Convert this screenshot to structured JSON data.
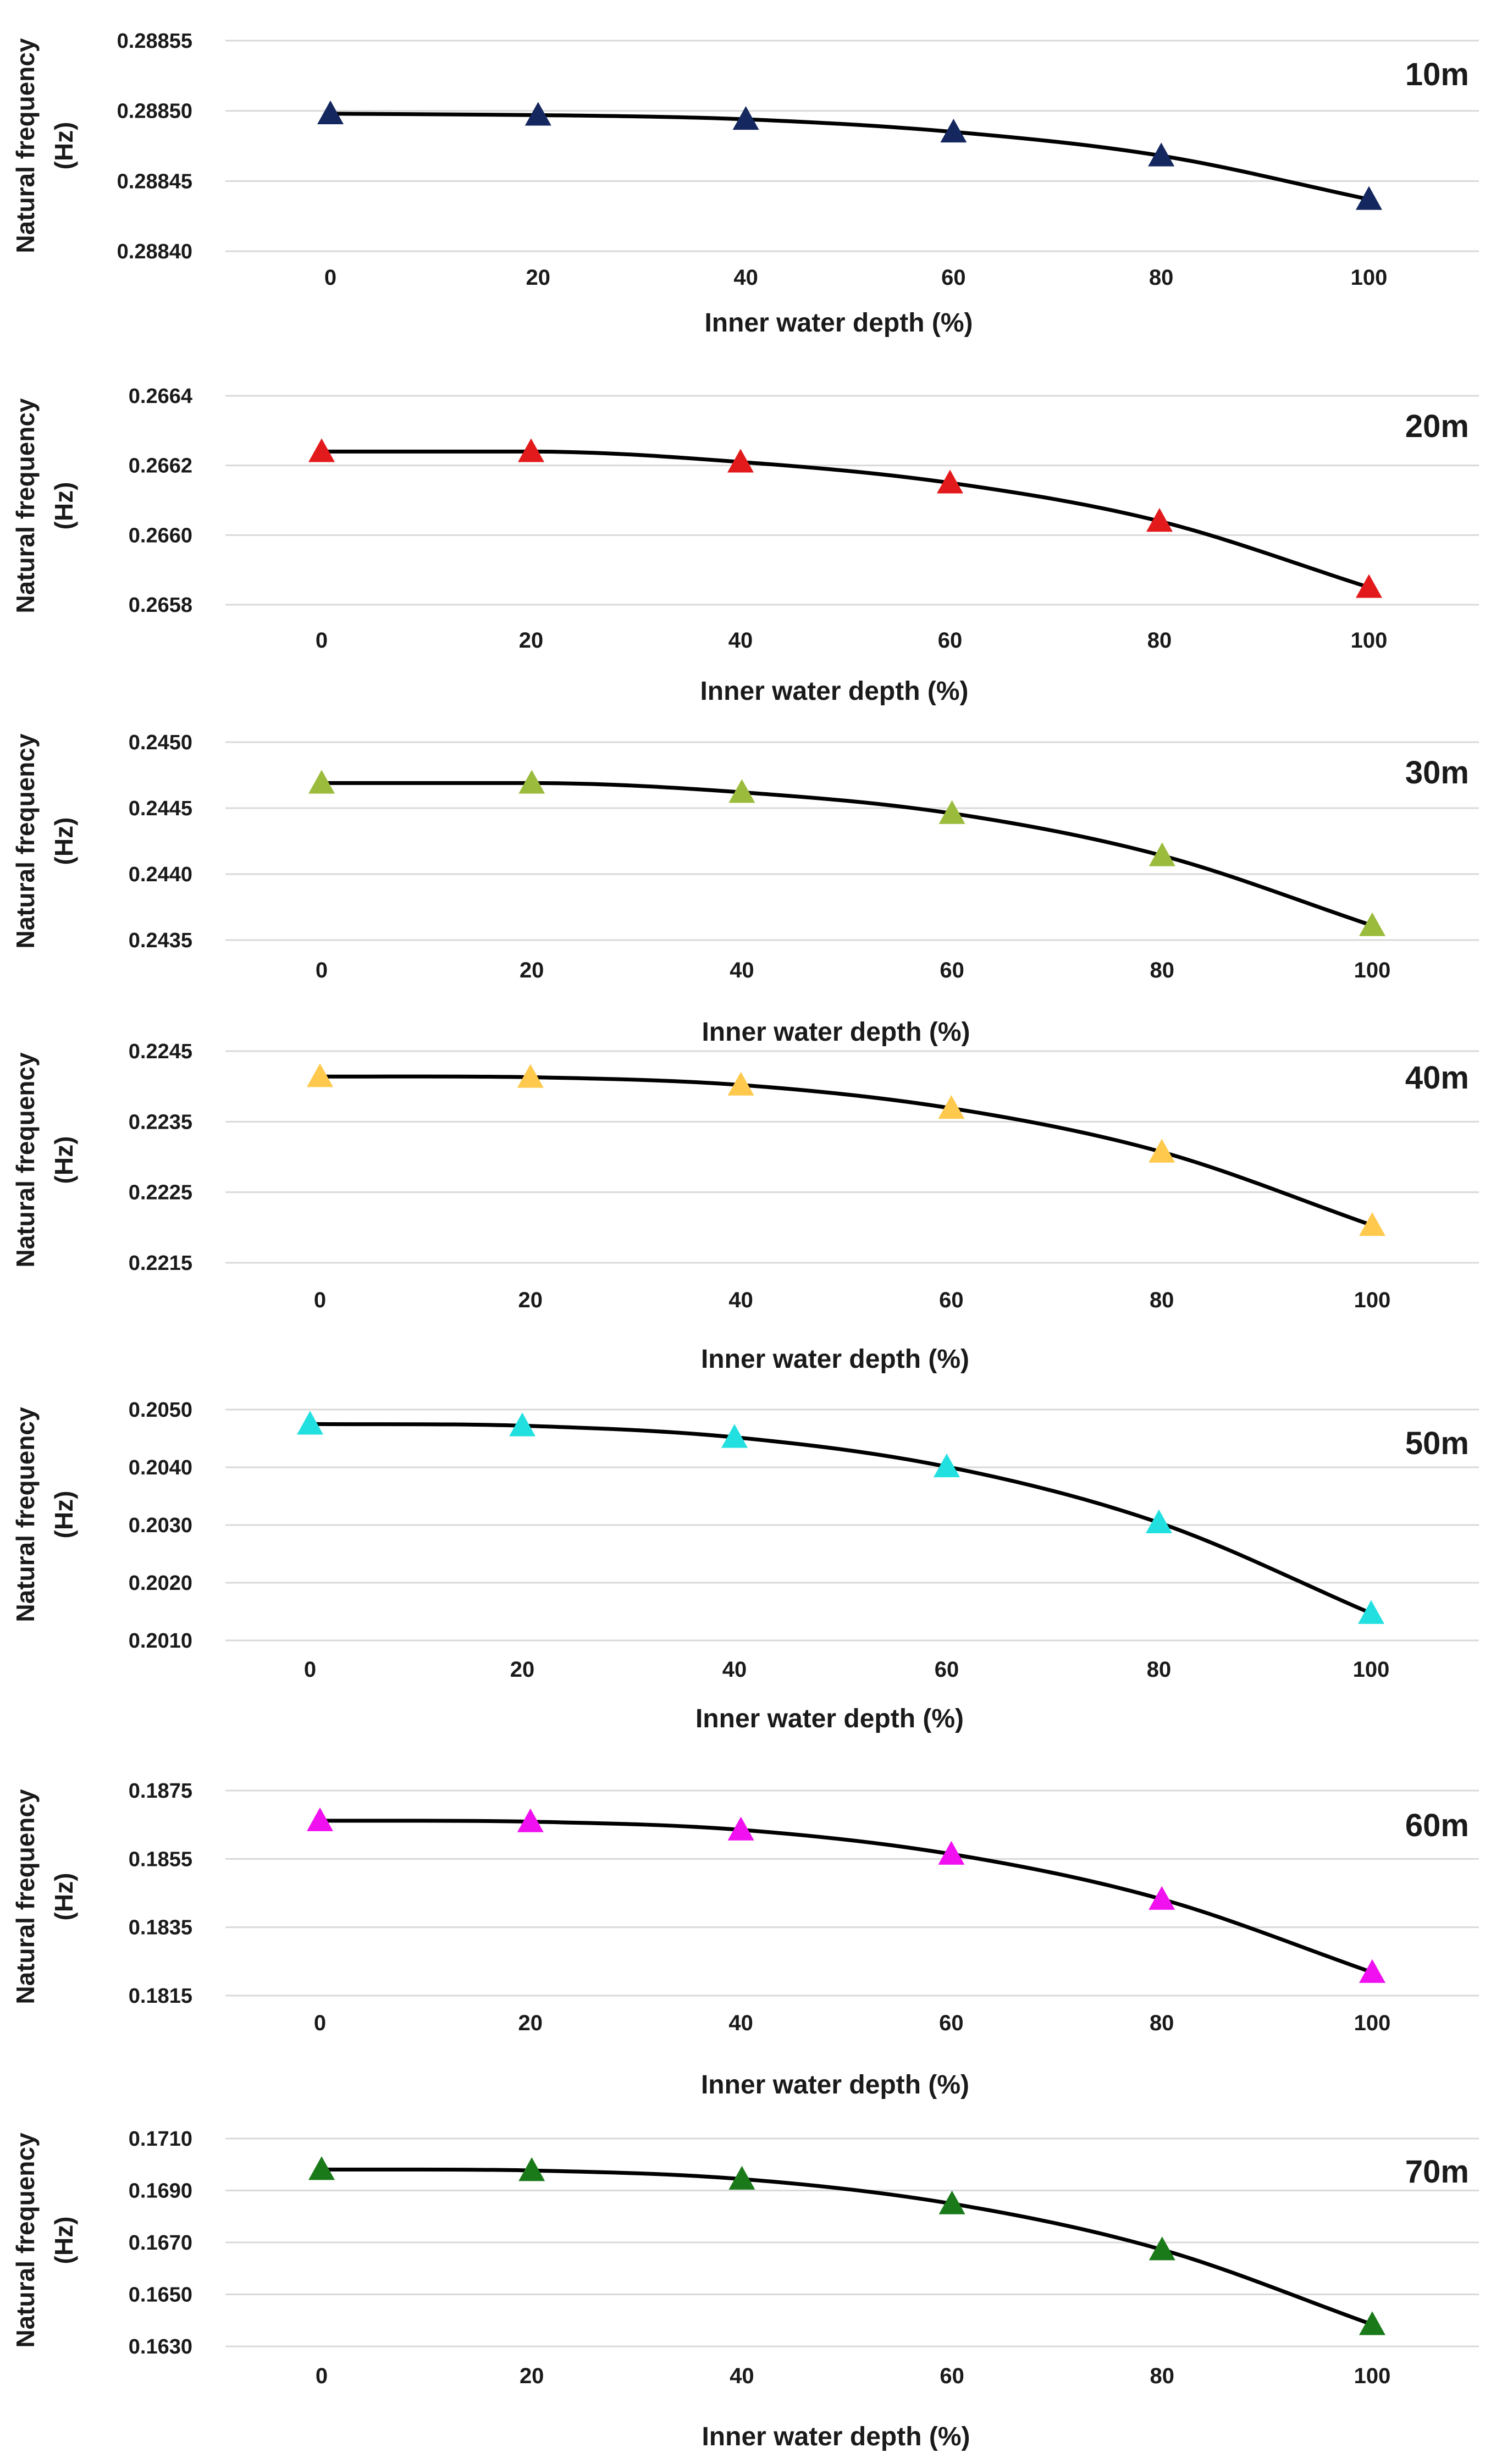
{
  "chart_data": [
    {
      "type": "line",
      "title": "10m",
      "xlabel": "Inner water depth (%)",
      "ylabel": [
        "Natural frequency",
        "(Hz)"
      ],
      "x": [
        0,
        20,
        40,
        60,
        80,
        100
      ],
      "x_tick_labels": [
        "0",
        "20",
        "40",
        "60",
        "80",
        "100"
      ],
      "values": [
        0.288498,
        0.288497,
        0.288494,
        0.288485,
        0.288468,
        0.288437
      ],
      "ylim": [
        0.2884,
        0.28855
      ],
      "y_ticks": [
        0.28855,
        0.2885,
        0.28845,
        0.2884
      ],
      "y_tick_labels": [
        "0.28855",
        "0.28850",
        "0.28845",
        "0.28840"
      ],
      "marker_color": "#14285f"
    },
    {
      "type": "line",
      "title": "20m",
      "xlabel": "Inner water depth (%)",
      "ylabel": [
        "Natural frequency",
        "(Hz)"
      ],
      "x": [
        0,
        20,
        40,
        60,
        80,
        100
      ],
      "x_tick_labels": [
        "0",
        "20",
        "40",
        "60",
        "80",
        "100"
      ],
      "values": [
        0.26624,
        0.26624,
        0.26621,
        0.26615,
        0.26604,
        0.26585
      ],
      "ylim": [
        0.2658,
        0.2664
      ],
      "y_ticks": [
        0.2664,
        0.2662,
        0.266,
        0.2658
      ],
      "y_tick_labels": [
        "0.2664",
        "0.2662",
        "0.2660",
        "0.2658"
      ],
      "marker_color": "#e31a1c"
    },
    {
      "type": "line",
      "title": "30m",
      "xlabel": "Inner water depth (%)",
      "ylabel": [
        "Natural frequency",
        "(Hz)"
      ],
      "x": [
        0,
        20,
        40,
        60,
        80,
        100
      ],
      "x_tick_labels": [
        "0",
        "20",
        "40",
        "60",
        "80",
        "100"
      ],
      "values": [
        0.24469,
        0.24469,
        0.24462,
        0.24446,
        0.24414,
        0.24361
      ],
      "ylim": [
        0.2435,
        0.245
      ],
      "y_ticks": [
        0.245,
        0.2445,
        0.244,
        0.2435
      ],
      "y_tick_labels": [
        "0.2450",
        "0.2445",
        "0.2440",
        "0.2435"
      ],
      "marker_color": "#9bbb3c"
    },
    {
      "type": "line",
      "title": "40m",
      "xlabel": "Inner water depth (%)",
      "ylabel": [
        "Natural frequency",
        "(Hz)"
      ],
      "x": [
        0,
        20,
        40,
        60,
        80,
        100
      ],
      "x_tick_labels": [
        "0",
        "20",
        "40",
        "60",
        "80",
        "100"
      ],
      "values": [
        0.22414,
        0.22413,
        0.22402,
        0.22369,
        0.22307,
        0.22203
      ],
      "ylim": [
        0.2215,
        0.2245
      ],
      "y_ticks": [
        0.2245,
        0.2235,
        0.2225,
        0.2215
      ],
      "y_tick_labels": [
        "0.2245",
        "0.2235",
        "0.2225",
        "0.2215"
      ],
      "marker_color": "#ffc94d"
    },
    {
      "type": "line",
      "title": "50m",
      "xlabel": "Inner water depth (%)",
      "ylabel": [
        "Natural frequency",
        "(Hz)"
      ],
      "x": [
        0,
        20,
        40,
        60,
        80,
        100
      ],
      "x_tick_labels": [
        "0",
        "20",
        "40",
        "60",
        "80",
        "100"
      ],
      "values": [
        0.20475,
        0.20472,
        0.20452,
        0.20401,
        0.20304,
        0.20147
      ],
      "ylim": [
        0.201,
        0.205
      ],
      "y_ticks": [
        0.205,
        0.204,
        0.203,
        0.202,
        0.201
      ],
      "y_tick_labels": [
        "0.2050",
        "0.2040",
        "0.2030",
        "0.2020",
        "0.2010"
      ],
      "marker_color": "#22e0e0"
    },
    {
      "type": "line",
      "title": "60m",
      "xlabel": "Inner water depth (%)",
      "ylabel": [
        "Natural frequency",
        "(Hz)"
      ],
      "x": [
        0,
        20,
        40,
        60,
        80,
        100
      ],
      "x_tick_labels": [
        "0",
        "20",
        "40",
        "60",
        "80",
        "100"
      ],
      "values": [
        0.18662,
        0.18659,
        0.18635,
        0.18564,
        0.18432,
        0.18218
      ],
      "ylim": [
        0.1815,
        0.1875
      ],
      "y_ticks": [
        0.1875,
        0.1855,
        0.1835,
        0.1815
      ],
      "y_tick_labels": [
        "0.1875",
        "0.1855",
        "0.1835",
        "0.1815"
      ],
      "marker_color": "#f010f0"
    },
    {
      "type": "line",
      "title": "70m",
      "xlabel": "Inner water depth (%)",
      "ylabel": [
        "Natural frequency",
        "(Hz)"
      ],
      "x": [
        0,
        20,
        40,
        60,
        80,
        100
      ],
      "x_tick_labels": [
        "0",
        "20",
        "40",
        "60",
        "80",
        "100"
      ],
      "values": [
        0.16981,
        0.16977,
        0.16944,
        0.16849,
        0.16672,
        0.16384
      ],
      "ylim": [
        0.163,
        0.171
      ],
      "y_ticks": [
        0.171,
        0.169,
        0.167,
        0.165,
        0.163
      ],
      "y_tick_labels": [
        "0.1710",
        "0.1690",
        "0.1670",
        "0.1650",
        "0.1630"
      ],
      "marker_color": "#1a7a1a"
    }
  ]
}
